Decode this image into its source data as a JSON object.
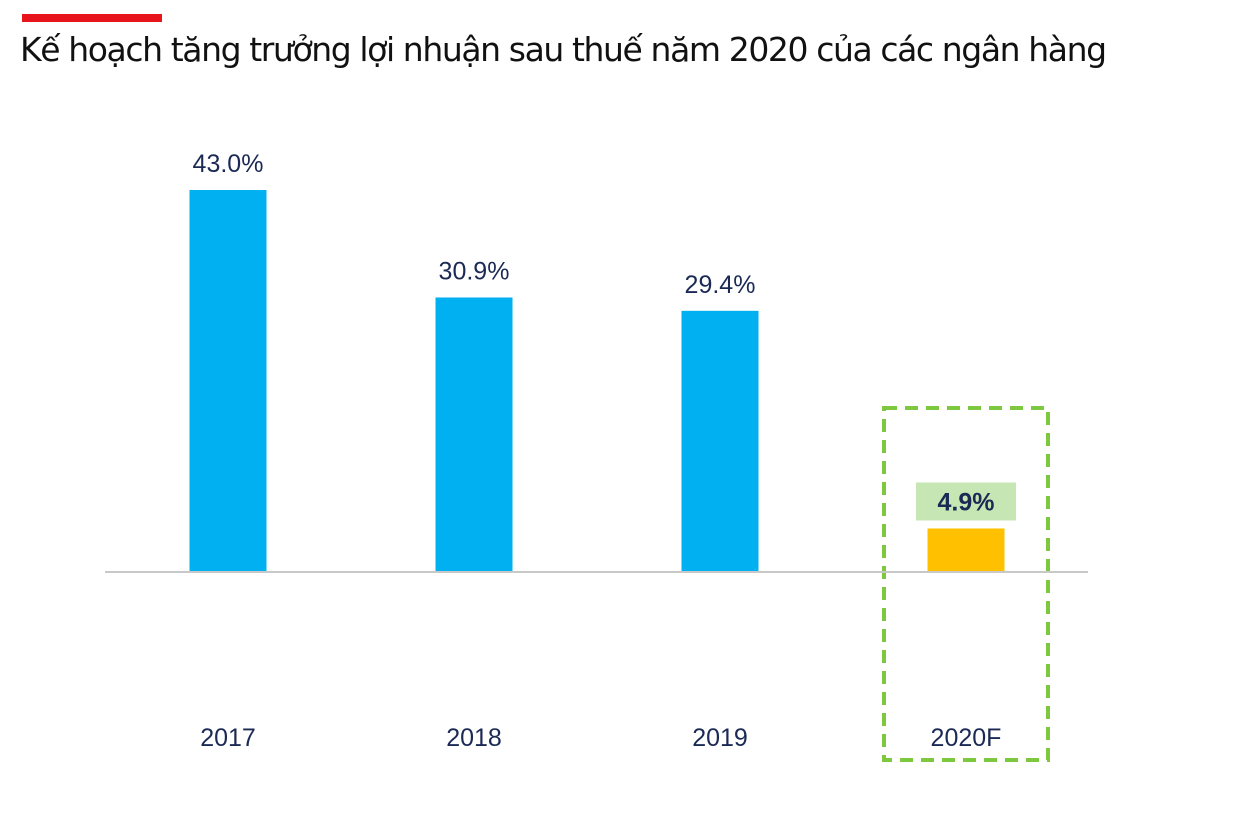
{
  "title": "Kế hoạch tăng trưởng lợi nhuận sau thuế năm 2020 của các ngân hàng",
  "colors": {
    "accent": "#e8141b",
    "bar": "#00b0f0",
    "forecast_bar": "#ffc000",
    "highlight_box": "#7dc83f",
    "highlight_label_bg": "#c6e6b3",
    "label_text": "#1b2a55",
    "axis": "#c8c8c8"
  },
  "chart_data": {
    "type": "bar",
    "title": "Kế hoạch tăng trưởng lợi nhuận sau thuế năm 2020 của các ngân hàng",
    "xlabel": "",
    "ylabel": "",
    "categories": [
      "2017",
      "2018",
      "2019",
      "2020F"
    ],
    "values": [
      43.0,
      30.9,
      29.4,
      4.9
    ],
    "data_labels": [
      "43.0%",
      "30.9%",
      "29.4%",
      "4.9%"
    ],
    "unit": "%",
    "ylim": [
      0,
      43.0
    ],
    "grid": false,
    "legend": "none",
    "highlighted_category": "2020F"
  }
}
